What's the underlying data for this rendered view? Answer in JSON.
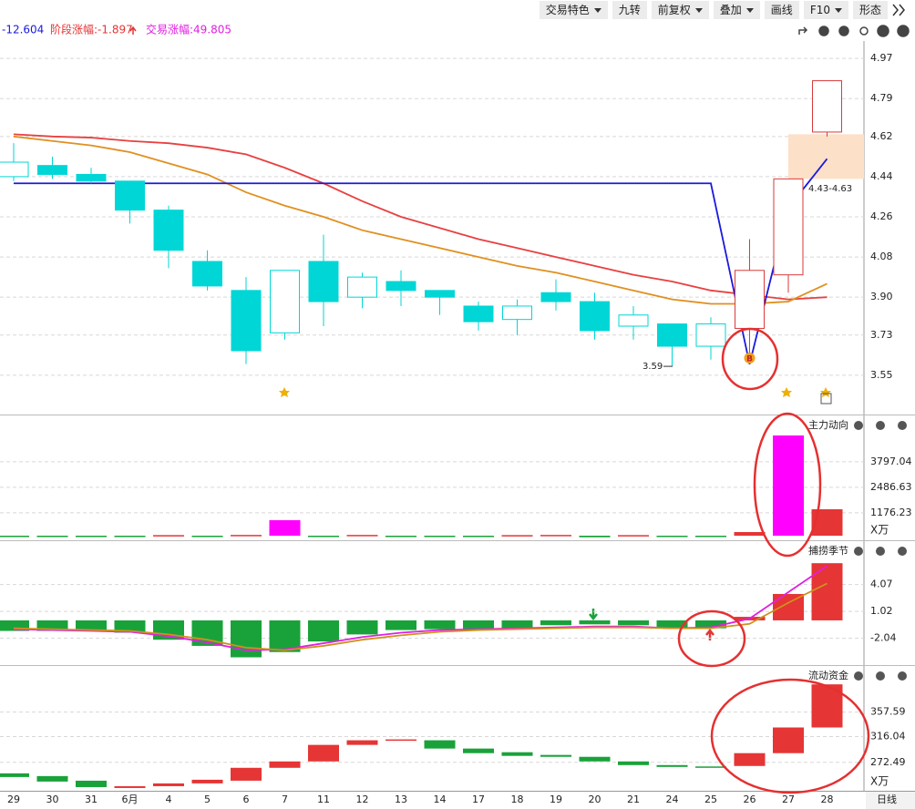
{
  "toolbar": [
    "交易特色",
    "九转",
    "前复权",
    "叠加",
    "画线",
    "F10",
    "形态"
  ],
  "info": {
    "value": "-12.604",
    "stage_change": "阶段涨幅:-1.897",
    "trade_change": "交易涨幅:49.805"
  },
  "period": "日线",
  "chart_data": [
    {
      "type": "candlestick",
      "categories": [
        "29",
        "30",
        "31",
        "6月",
        "4",
        "5",
        "6",
        "7",
        "11",
        "12",
        "13",
        "14",
        "17",
        "18",
        "19",
        "20",
        "21",
        "24",
        "25",
        "26",
        "27",
        "28"
      ],
      "open": [
        4.44,
        4.49,
        4.45,
        4.42,
        4.29,
        4.06,
        3.93,
        3.74,
        4.06,
        3.9,
        3.97,
        3.93,
        3.86,
        3.8,
        3.92,
        3.88,
        3.77,
        3.78,
        3.68,
        3.76,
        4.0,
        4.64
      ],
      "close": [
        4.505,
        4.45,
        4.42,
        4.29,
        4.11,
        3.95,
        3.66,
        4.02,
        3.88,
        3.99,
        3.93,
        3.9,
        3.79,
        3.86,
        3.88,
        3.75,
        3.82,
        3.68,
        3.78,
        4.02,
        4.43,
        4.87
      ],
      "high": [
        4.59,
        4.53,
        4.48,
        4.42,
        4.31,
        4.11,
        3.99,
        4.02,
        4.18,
        4.01,
        4.02,
        3.93,
        3.88,
        3.89,
        3.98,
        3.92,
        3.86,
        3.78,
        3.81,
        4.16,
        4.43,
        4.87
      ],
      "low": [
        4.42,
        4.43,
        4.41,
        4.23,
        4.03,
        3.93,
        3.6,
        3.71,
        3.77,
        3.85,
        3.86,
        3.82,
        3.75,
        3.73,
        3.84,
        3.71,
        3.71,
        3.59,
        3.62,
        3.63,
        3.92,
        4.62
      ],
      "colors": [
        "#00d6d6",
        "#00d6d6",
        "#00d6d6",
        "#00d6d6",
        "#00d6d6",
        "#00d6d6",
        "#00d6d6",
        "#00d6d6",
        "#00d6d6",
        "#00d6d6",
        "#00d6d6",
        "#00d6d6",
        "#00d6d6",
        "#00d6d6",
        "#00d6d6",
        "#00d6d6",
        "#00d6d6",
        "#00d6d6",
        "#00d6d6",
        "#d93a3a",
        "#d93a3a",
        "#d93a3a"
      ],
      "series": [
        {
          "color": "#e84040",
          "values": [
            4.63,
            4.62,
            4.615,
            4.6,
            4.59,
            4.57,
            4.54,
            4.48,
            4.41,
            4.33,
            4.26,
            4.21,
            4.16,
            4.12,
            4.08,
            4.04,
            4.0,
            3.97,
            3.93,
            3.91,
            3.89,
            3.9
          ]
        },
        {
          "color": "#e09020",
          "values": [
            4.62,
            4.6,
            4.58,
            4.55,
            4.5,
            4.45,
            4.37,
            4.31,
            4.26,
            4.2,
            4.16,
            4.12,
            4.08,
            4.04,
            4.01,
            3.97,
            3.93,
            3.89,
            3.87,
            3.87,
            3.88,
            3.96
          ]
        },
        {
          "color": "#1a1adc",
          "values": [
            4.41,
            4.41,
            4.41,
            4.41,
            4.41,
            4.41,
            4.41,
            4.41,
            4.41,
            4.41,
            4.41,
            4.41,
            4.41,
            4.41,
            4.41,
            4.41,
            4.41,
            4.41,
            4.41,
            3.6,
            4.3,
            4.52
          ]
        }
      ],
      "low_label": {
        "label": "3.59",
        "value": 3.59
      },
      "zone": {
        "label": "4.43-4.63",
        "low": 4.43,
        "high": 4.63
      },
      "marker": "B",
      "ylim": [
        3.374,
        5.048
      ],
      "yticks": [
        4.97,
        4.79,
        4.62,
        4.44,
        4.26,
        4.08,
        {
          "value": 3.9,
          "label": "3.90"
        },
        3.73,
        3.55
      ]
    },
    {
      "type": "bar",
      "title": "主力动向",
      "unit": "X万",
      "values": [
        -20,
        -30,
        -60,
        -40,
        30,
        -30,
        40,
        796,
        -30,
        40,
        -20,
        -30,
        -30,
        30,
        40,
        -80,
        30,
        -60,
        -40,
        187,
        5148,
        1357
      ],
      "colors": [
        "#1aa23a",
        "#1aa23a",
        "#1aa23a",
        "#1aa23a",
        "#e53535",
        "#1aa23a",
        "#e53535",
        "#ff00ff",
        "#1aa23a",
        "#e53535",
        "#1aa23a",
        "#1aa23a",
        "#1aa23a",
        "#e53535",
        "#e53535",
        "#1aa23a",
        "#e53535",
        "#1aa23a",
        "#1aa23a",
        "#e53535",
        "#ff00ff",
        "#e53535"
      ],
      "ylim": [
        -187,
        6131
      ],
      "yticks": [
        3797.04,
        2486.63,
        1176.23
      ]
    },
    {
      "type": "bar",
      "title": "捕捞季节",
      "values": [
        -1.2,
        -1.2,
        -1.2,
        -1.4,
        -2.2,
        -2.9,
        -4.2,
        -3.6,
        -2.4,
        -1.6,
        -1.1,
        -1.0,
        -1.0,
        -0.9,
        -0.55,
        -0.45,
        -0.55,
        -0.9,
        -0.9,
        0.4,
        3.0,
        6.5
      ],
      "colors": [
        "#1aa23a",
        "#1aa23a",
        "#1aa23a",
        "#1aa23a",
        "#1aa23a",
        "#1aa23a",
        "#1aa23a",
        "#1aa23a",
        "#1aa23a",
        "#1aa23a",
        "#1aa23a",
        "#1aa23a",
        "#1aa23a",
        "#1aa23a",
        "#1aa23a",
        "#1aa23a",
        "#1aa23a",
        "#1aa23a",
        "#1aa23a",
        "#e53535",
        "#e53535",
        "#e53535"
      ],
      "series": [
        {
          "color": "#e020e0",
          "values": [
            -1.0,
            -1.1,
            -1.2,
            -1.3,
            -1.8,
            -2.5,
            -3.4,
            -3.3,
            -2.6,
            -1.9,
            -1.4,
            -1.1,
            -1.0,
            -0.9,
            -0.8,
            -0.7,
            -0.7,
            -0.9,
            -0.8,
            0.2,
            3.2,
            6.2
          ]
        },
        {
          "color": "#d09020",
          "values": [
            -0.9,
            -1.0,
            -1.1,
            -1.2,
            -1.6,
            -2.2,
            -3.1,
            -3.4,
            -2.9,
            -2.2,
            -1.7,
            -1.3,
            -1.1,
            -1.0,
            -0.9,
            -0.8,
            -0.8,
            -0.9,
            -0.9,
            -0.4,
            2.0,
            4.2
          ]
        }
      ],
      "ylim": [
        -5.08,
        8.9
      ],
      "yticks": [
        4.07,
        1.02,
        -2.04
      ]
    },
    {
      "type": "floating_bar",
      "title": "流动资金",
      "unit": "X万",
      "open": [
        253.8,
        249.2,
        241.4,
        229.0,
        232.1,
        236.8,
        241.4,
        263.2,
        274.0,
        302.0,
        309.8,
        309.8,
        295.8,
        289.6,
        285.0,
        281.8,
        274.0,
        267.8,
        265.5,
        266.3,
        288.0,
        331.5
      ],
      "close": [
        247.6,
        239.9,
        230.5,
        232.1,
        236.8,
        243.0,
        263.2,
        274.0,
        302.0,
        309.8,
        311.3,
        295.8,
        288.0,
        283.4,
        281.8,
        274.0,
        267.8,
        264.7,
        264.7,
        288.0,
        331.5,
        404.5
      ],
      "up_color": "#e53535",
      "down_color": "#1aa23a",
      "ylim": [
        224.3,
        434.1
      ],
      "yticks": [
        357.59,
        316.04,
        272.49
      ]
    }
  ]
}
